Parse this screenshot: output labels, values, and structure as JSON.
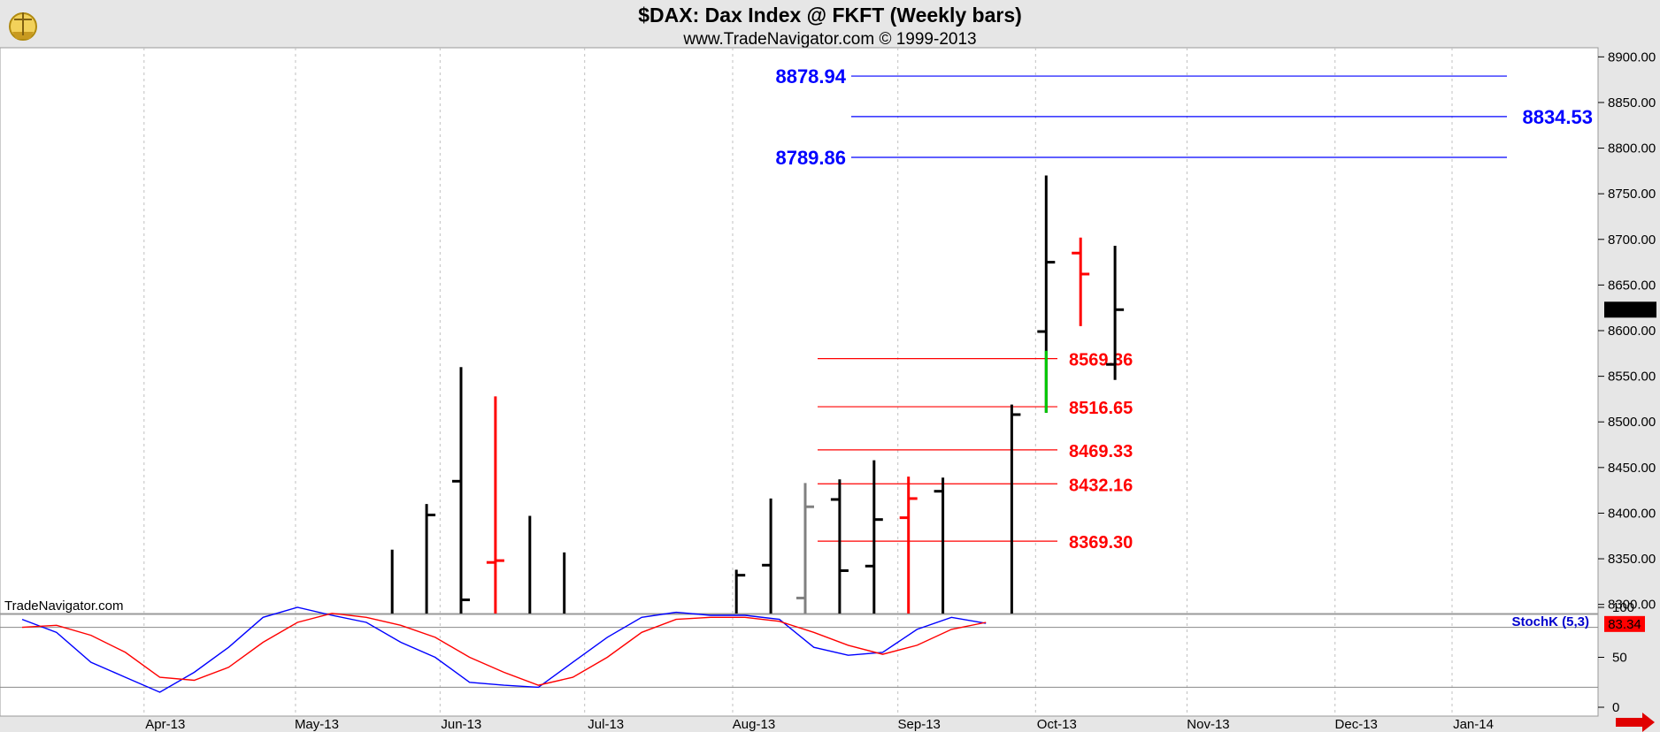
{
  "header": {
    "title": "$DAX:  Dax Index @ FKFT  (Weekly bars)",
    "subtitle": "www.TradeNavigator.com © 1999-2013"
  },
  "watermark": "TradeNavigator.com",
  "last_price_label": "8622.97",
  "colors": {
    "up_bar": "#000000",
    "down_bar": "#ff0000",
    "gap_bar": "#00cc00",
    "neutral_bar": "#808080",
    "blue_level": "#0000ff",
    "red_level": "#ff0000",
    "grid": "#c0c0c0",
    "panel_bg": "#ffffff",
    "frame_bg": "#e6e6e6"
  },
  "chart_data": [
    {
      "type": "ohlc",
      "title": "$DAX:  Dax Index @ FKFT  (Weekly bars)",
      "x_ticks": [
        "Apr-13",
        "May-13",
        "Jun-13",
        "Jul-13",
        "Aug-13",
        "Sep-13",
        "Oct-13",
        "Nov-13",
        "Dec-13",
        "Jan-14"
      ],
      "ylim": [
        8290,
        8910
      ],
      "y_ticks": [
        "8300.00",
        "8350.00",
        "8400.00",
        "8450.00",
        "8500.00",
        "8550.00",
        "8600.00",
        "8650.00",
        "8700.00",
        "8750.00",
        "8800.00",
        "8850.00",
        "8900.00"
      ],
      "last_price": 8622.97,
      "bars": [
        {
          "week": 8,
          "high": 8360,
          "low": 8290,
          "open": null,
          "close": null,
          "color": "black"
        },
        {
          "week": 9,
          "high": 8410,
          "low": 8290,
          "open": null,
          "close": 8398,
          "color": "black"
        },
        {
          "week": 10,
          "high": 8560,
          "low": 8290,
          "open": 8435,
          "close": 8305,
          "color": "black"
        },
        {
          "week": 11,
          "high": 8528,
          "low": 8290,
          "open": 8346,
          "close": 8348,
          "color": "red"
        },
        {
          "week": 12,
          "high": 8397,
          "low": 8290,
          "open": null,
          "close": null,
          "color": "black"
        },
        {
          "week": 13,
          "high": 8357,
          "low": 8290,
          "open": null,
          "close": null,
          "color": "black"
        },
        {
          "week": 18,
          "high": 8338,
          "low": 8290,
          "open": null,
          "close": 8332,
          "color": "black"
        },
        {
          "week": 19,
          "high": 8416,
          "low": 8290,
          "open": 8343,
          "close": null,
          "color": "black"
        },
        {
          "week": 20,
          "high": 8433,
          "low": 8290,
          "open": 8307,
          "close": 8407,
          "color": "gray"
        },
        {
          "week": 21,
          "high": 8437,
          "low": 8290,
          "open": 8415,
          "close": 8337,
          "color": "black"
        },
        {
          "week": 22,
          "high": 8458,
          "low": 8290,
          "open": 8342,
          "close": 8393,
          "color": "black"
        },
        {
          "week": 23,
          "high": 8440,
          "low": 8290,
          "open": 8395,
          "close": 8416,
          "color": "red"
        },
        {
          "week": 24,
          "high": 8439,
          "low": 8290,
          "open": 8424,
          "close": null,
          "color": "black"
        },
        {
          "week": 26,
          "high": 8519,
          "low": 8290,
          "open": null,
          "close": 8508,
          "color": "black"
        },
        {
          "week": 27,
          "high": 8770,
          "low": 8510,
          "open": 8599,
          "close": 8675,
          "color": "black",
          "gap_low": 8510,
          "gap_high": 8578
        },
        {
          "week": 28,
          "high": 8702,
          "low": 8605,
          "open": 8685,
          "close": 8662,
          "color": "red"
        },
        {
          "week": 29,
          "high": 8693,
          "low": 8546,
          "open": 8563,
          "close": 8622.97,
          "color": "black"
        }
      ]
    },
    {
      "type": "line",
      "title": "StochK (5,3)",
      "ylim": [
        0,
        100
      ],
      "y_ticks": [
        "0",
        "50",
        "100"
      ],
      "last_value_label": "83.34",
      "series": [
        {
          "name": "StochK (5,3)",
          "color": "blue",
          "values": [
            88,
            75,
            45,
            30,
            15,
            35,
            60,
            90,
            100,
            92,
            85,
            65,
            50,
            25,
            22,
            20,
            45,
            70,
            90,
            95,
            92,
            92,
            88,
            60,
            52,
            55,
            78,
            90,
            84
          ]
        },
        {
          "name": "",
          "color": "red",
          "values": [
            80,
            82,
            72,
            55,
            30,
            27,
            40,
            65,
            85,
            94,
            90,
            82,
            70,
            50,
            35,
            22,
            30,
            50,
            75,
            88,
            90,
            90,
            86,
            75,
            62,
            53,
            62,
            78,
            85
          ]
        }
      ]
    }
  ],
  "levels_blue": [
    {
      "label": "8878.94",
      "value": 8878.94,
      "side": "left"
    },
    {
      "label": "8834.53",
      "value": 8834.53,
      "side": "right"
    },
    {
      "label": "8789.86",
      "value": 8789.86,
      "side": "left"
    }
  ],
  "levels_red": [
    {
      "label": "8569.36",
      "value": 8569.36
    },
    {
      "label": "8516.65",
      "value": 8516.65
    },
    {
      "label": "8469.33",
      "value": 8469.33
    },
    {
      "label": "8432.16",
      "value": 8432.16
    },
    {
      "label": "8369.30",
      "value": 8369.3
    }
  ]
}
